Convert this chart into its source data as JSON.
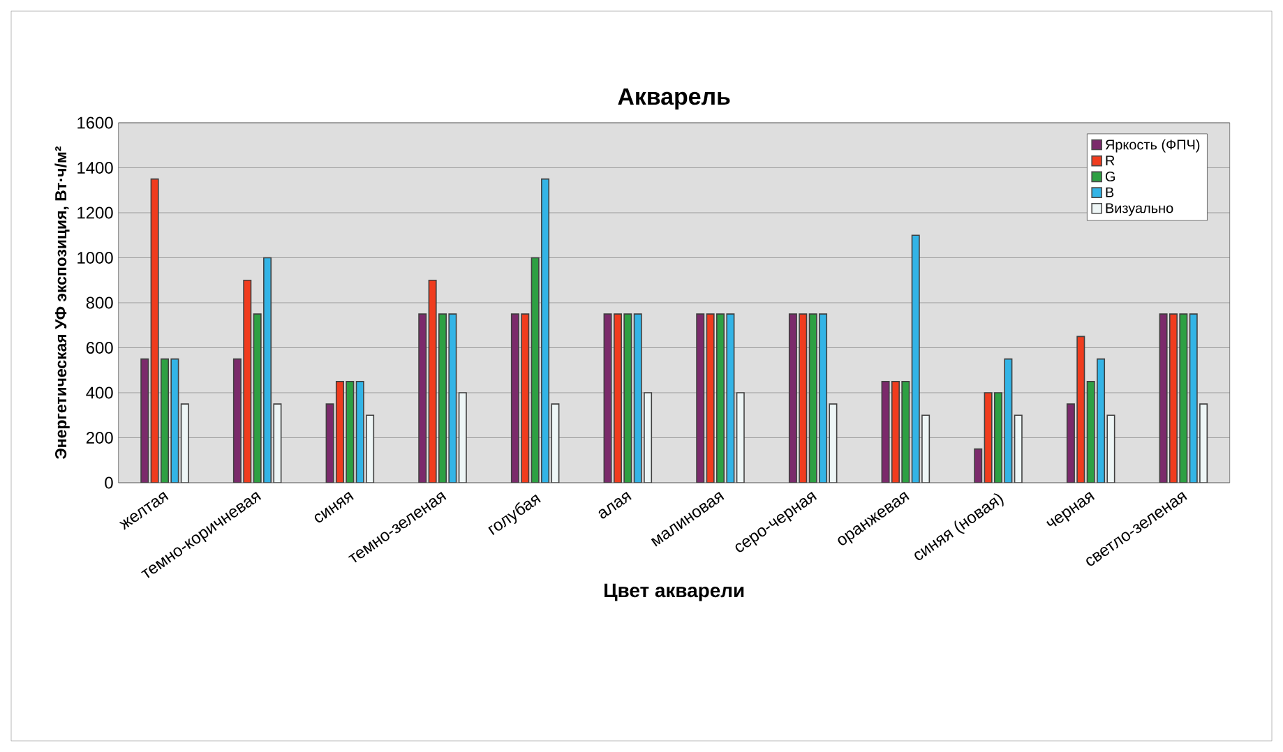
{
  "chart_data": {
    "type": "bar",
    "title": "Акварель",
    "xlabel": "Цвет акварели",
    "ylabel": "Энергетическая УФ экспозиция, Вт·ч/м²",
    "categories": [
      "желтая",
      "темно-коричневая",
      "синяя",
      "темно-зеленая",
      "голубая",
      "алая",
      "малиновая",
      "серо-черная",
      "оранжевая",
      "синяя (новая)",
      "черная",
      "светло-зеленая"
    ],
    "series": [
      {
        "name": "Яркость (ФПЧ)",
        "color": "#7b2a6b",
        "values": [
          550,
          550,
          350,
          750,
          750,
          750,
          750,
          750,
          450,
          150,
          350,
          750
        ]
      },
      {
        "name": "R",
        "color": "#f03c1e",
        "values": [
          1350,
          900,
          450,
          900,
          750,
          750,
          750,
          750,
          450,
          400,
          650,
          750
        ]
      },
      {
        "name": "G",
        "color": "#2ea043",
        "values": [
          550,
          750,
          450,
          750,
          1000,
          750,
          750,
          750,
          450,
          400,
          450,
          750
        ]
      },
      {
        "name": "B",
        "color": "#33b4e6",
        "values": [
          550,
          1000,
          450,
          750,
          1350,
          750,
          750,
          750,
          1100,
          550,
          550,
          750
        ]
      },
      {
        "name": "Визуально",
        "color": "#eef6f6",
        "values": [
          350,
          350,
          300,
          400,
          350,
          400,
          400,
          350,
          300,
          300,
          300,
          350
        ]
      }
    ],
    "ylim": [
      0,
      1600
    ],
    "yticks": [
      0,
      200,
      400,
      600,
      800,
      1000,
      1200,
      1400,
      1600
    ],
    "grid": "y",
    "legend": "top right"
  }
}
